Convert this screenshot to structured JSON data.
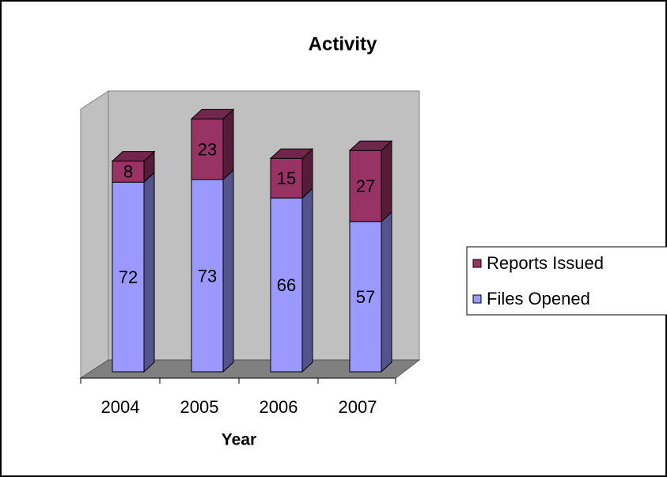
{
  "chart_data": {
    "type": "bar3d_stacked",
    "title": "Activity",
    "x_label": "Year",
    "categories": [
      "2004",
      "2005",
      "2006",
      "2007"
    ],
    "series": [
      {
        "name": "Files Opened",
        "color": "#9999ff",
        "values": [
          72,
          73,
          66,
          57
        ]
      },
      {
        "name": "Reports Issued",
        "color": "#993366",
        "values": [
          8,
          23,
          15,
          27
        ]
      }
    ],
    "ylim": [
      0,
      100
    ],
    "legend": "right"
  }
}
